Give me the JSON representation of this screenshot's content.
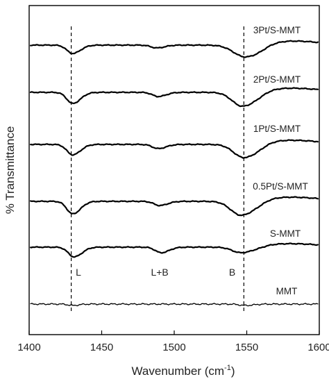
{
  "chart_data": {
    "type": "line",
    "title": "",
    "xlabel": "Wavenumber (cm-1)",
    "xlabel_prefix": "Wavenumber (cm",
    "xlabel_sup": "-1",
    "xlabel_suffix": ")",
    "ylabel": "% Transmittance",
    "xlim": [
      1400,
      1600
    ],
    "x_ticks": [
      "1400",
      "1450",
      "1500",
      "1550",
      "1600"
    ],
    "x_tick_values": [
      1400,
      1450,
      1500,
      1550,
      1600
    ],
    "y_ticks": "none",
    "grid": false,
    "legend": "labels placed next to each trace",
    "reference_lines": [
      {
        "x": 1429,
        "style": "dashed"
      },
      {
        "x": 1548,
        "style": "dashed"
      }
    ],
    "annotations": [
      {
        "text": "L",
        "x": 1433
      },
      {
        "text": "L+B",
        "x": 1490
      },
      {
        "text": "B",
        "x": 1540
      }
    ],
    "series": [
      {
        "name": "3Pt/S-MMT",
        "baseline": 0,
        "bands": [
          {
            "x": 1430,
            "depth": 12,
            "width": 4
          },
          {
            "x": 1488,
            "depth": 4,
            "width": 4
          },
          {
            "x": 1549,
            "depth": 17,
            "width": 8
          }
        ]
      },
      {
        "name": "2Pt/S-MMT",
        "baseline": 1,
        "bands": [
          {
            "x": 1430,
            "depth": 16,
            "width": 4
          },
          {
            "x": 1489,
            "depth": 6,
            "width": 4
          },
          {
            "x": 1547,
            "depth": 20,
            "width": 7
          }
        ]
      },
      {
        "name": "1Pt/S-MMT",
        "baseline": 2,
        "bands": [
          {
            "x": 1430,
            "depth": 15,
            "width": 4
          },
          {
            "x": 1489,
            "depth": 6,
            "width": 4
          },
          {
            "x": 1548,
            "depth": 19,
            "width": 7
          }
        ]
      },
      {
        "name": "0.5Pt/S-MMT",
        "baseline": 3,
        "bands": [
          {
            "x": 1430,
            "depth": 18,
            "width": 4
          },
          {
            "x": 1490,
            "depth": 6,
            "width": 4
          },
          {
            "x": 1546,
            "depth": 20,
            "width": 7
          }
        ]
      },
      {
        "name": "S-MMT",
        "baseline": 4,
        "bands": [
          {
            "x": 1431,
            "depth": 14,
            "width": 4
          },
          {
            "x": 1491,
            "depth": 8,
            "width": 4
          },
          {
            "x": 1546,
            "depth": 8,
            "width": 6
          }
        ]
      },
      {
        "name": "MMT",
        "baseline": 5,
        "bands": [
          {
            "x": 1430,
            "depth": 2,
            "width": 3
          },
          {
            "x": 1549,
            "depth": 2,
            "width": 4
          }
        ]
      }
    ]
  }
}
